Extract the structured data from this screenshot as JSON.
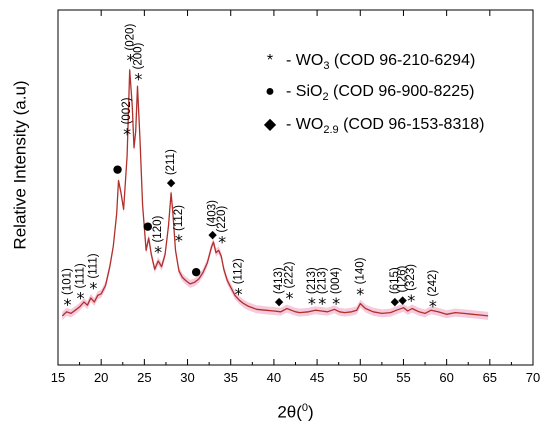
{
  "chart_data": {
    "type": "line",
    "xlabel_base": "2θ(",
    "xlabel_sup": "0",
    "xlabel_end": ")",
    "ylabel": "Relative Intensity (a.u)",
    "xlim": [
      15,
      70
    ],
    "xticks": [
      "15",
      "20",
      "25",
      "30",
      "35",
      "40",
      "45",
      "50",
      "55",
      "60",
      "65",
      "70"
    ],
    "y_tick_labels": "none",
    "line_color": "#b0302a",
    "band_color": "#f6c9dd",
    "series": [
      {
        "x": [
          15.5,
          16.0,
          16.5,
          17.0,
          17.5,
          18.0,
          18.4,
          18.8,
          19.2,
          19.6,
          20.0,
          20.5,
          21.0,
          21.4,
          21.8,
          22.0,
          22.3,
          22.6,
          23.0,
          23.3,
          23.6,
          23.8,
          24.0,
          24.2,
          24.5,
          24.8,
          25.2,
          25.5,
          25.8,
          26.2,
          26.6,
          27.0,
          27.4,
          27.8,
          28.1,
          28.3,
          28.6,
          29.0,
          29.4,
          29.8,
          30.3,
          30.8,
          31.3,
          31.8,
          32.3,
          32.8,
          33.0,
          33.3,
          33.6,
          33.9,
          34.2,
          34.6,
          35.0,
          35.5,
          36.0,
          36.5,
          37.0,
          38.0,
          39.0,
          40.0,
          40.8,
          41.5,
          42.0,
          42.5,
          43.0,
          44.0,
          44.8,
          45.5,
          46.2,
          47.0,
          47.6,
          48.2,
          49.0,
          49.6,
          50.0,
          50.6,
          51.5,
          52.5,
          53.5,
          54.2,
          55.0,
          55.5,
          56.0,
          56.8,
          57.5,
          58.2,
          59.0,
          60.0,
          61.0,
          62.0,
          63.0,
          64.0,
          64.8
        ],
        "y": [
          0.05,
          0.1,
          0.08,
          0.12,
          0.16,
          0.22,
          0.18,
          0.27,
          0.22,
          0.3,
          0.32,
          0.42,
          0.65,
          0.9,
          1.3,
          1.7,
          1.55,
          1.35,
          2.0,
          3.05,
          2.6,
          2.1,
          2.3,
          2.85,
          2.2,
          1.4,
          0.85,
          1.0,
          0.8,
          0.62,
          0.72,
          0.65,
          0.8,
          1.15,
          1.55,
          1.3,
          0.85,
          0.6,
          0.52,
          0.48,
          0.44,
          0.46,
          0.5,
          0.58,
          0.7,
          0.9,
          0.95,
          0.82,
          0.85,
          0.78,
          0.62,
          0.48,
          0.4,
          0.3,
          0.24,
          0.2,
          0.17,
          0.13,
          0.12,
          0.11,
          0.1,
          0.14,
          0.12,
          0.1,
          0.09,
          0.1,
          0.12,
          0.11,
          0.1,
          0.13,
          0.1,
          0.09,
          0.1,
          0.12,
          0.2,
          0.14,
          0.1,
          0.08,
          0.09,
          0.12,
          0.15,
          0.11,
          0.14,
          0.1,
          0.08,
          0.12,
          0.1,
          0.07,
          0.09,
          0.08,
          0.07,
          0.06,
          0.05
        ]
      }
    ],
    "legend": [
      {
        "marker": "*",
        "text": "- WO",
        "sub": "3",
        "tail": " (COD 96-210-6294)"
      },
      {
        "marker": "●",
        "text": "- SiO",
        "sub": "2",
        "tail": " (COD 96-900-8225)"
      },
      {
        "marker": "◆",
        "text": "- WO",
        "sub": "2.9",
        "tail": " (COD 96-153-8318)"
      }
    ],
    "peak_annotations": [
      {
        "x": 16.1,
        "y": 0.22,
        "marker": "*",
        "label": "(101)"
      },
      {
        "x": 17.6,
        "y": 0.3,
        "marker": "*",
        "label": "(111)"
      },
      {
        "x": 19.1,
        "y": 0.42,
        "marker": "*",
        "label": "(111)"
      },
      {
        "x": 21.9,
        "y": 1.85,
        "marker": "●",
        "label": ""
      },
      {
        "x": 23.0,
        "y": 2.3,
        "marker": "*",
        "label": "(002)"
      },
      {
        "x": 23.4,
        "y": 3.2,
        "marker": "*",
        "label": "(020)"
      },
      {
        "x": 24.3,
        "y": 2.97,
        "marker": "*",
        "label": "(200)"
      },
      {
        "x": 25.4,
        "y": 1.15,
        "marker": "●",
        "label": ""
      },
      {
        "x": 26.6,
        "y": 0.86,
        "marker": "*",
        "label": "(120)"
      },
      {
        "x": 28.1,
        "y": 1.68,
        "marker": "◆",
        "label": "(211)"
      },
      {
        "x": 29.0,
        "y": 1.0,
        "marker": "*",
        "label": "(112)"
      },
      {
        "x": 31.0,
        "y": 0.6,
        "marker": "●",
        "label": ""
      },
      {
        "x": 32.9,
        "y": 1.05,
        "marker": "◆",
        "label": "(403)"
      },
      {
        "x": 34.0,
        "y": 0.98,
        "marker": "*",
        "label": "(220)"
      },
      {
        "x": 35.9,
        "y": 0.35,
        "marker": "*",
        "label": "(112)"
      },
      {
        "x": 40.6,
        "y": 0.23,
        "marker": "◆",
        "label": "(413)"
      },
      {
        "x": 41.8,
        "y": 0.3,
        "marker": "*",
        "label": "(222)"
      },
      {
        "x": 44.4,
        "y": 0.23,
        "marker": "*",
        "label": "(213)"
      },
      {
        "x": 45.6,
        "y": 0.23,
        "marker": "*",
        "label": "(213)"
      },
      {
        "x": 47.2,
        "y": 0.23,
        "marker": "*",
        "label": "(004)"
      },
      {
        "x": 50.0,
        "y": 0.35,
        "marker": "*",
        "label": "(140)"
      },
      {
        "x": 54.0,
        "y": 0.23,
        "marker": "◆",
        "label": "(615)"
      },
      {
        "x": 54.9,
        "y": 0.25,
        "marker": "◆",
        "label": "(126)"
      },
      {
        "x": 55.9,
        "y": 0.27,
        "marker": "*",
        "label": "(323)"
      },
      {
        "x": 58.4,
        "y": 0.2,
        "marker": "*",
        "label": "(242)"
      }
    ]
  }
}
